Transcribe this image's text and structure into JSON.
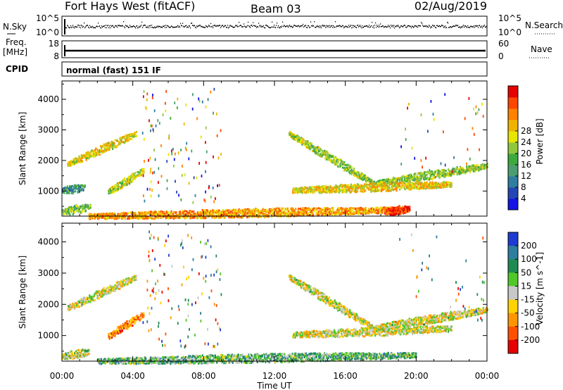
{
  "header": {
    "station": "Fort Hays West (fitACF)",
    "beam": "Beam 03",
    "date": "02/Aug/2019"
  },
  "strip": {
    "nsky_label": "N.Sky",
    "nsky_ticks": [
      "10^5",
      "10^0"
    ],
    "nsearch_label": "N.Search",
    "nsearch_ticks": [
      "10^5",
      "10^0"
    ],
    "freq_label": "Freq.",
    "freq_unit": "[MHz]",
    "freq_ticks": [
      "18",
      "8"
    ],
    "nave_label": "Nave",
    "nave_ticks": [
      "60",
      "0"
    ],
    "cpid_label": "CPID",
    "cpid_text": "normal (fast) 151 IF"
  },
  "chart_data": [
    {
      "type": "heatmap",
      "panel": "power",
      "ylabel": "Slant Range [km]",
      "yticks": [
        1000,
        2000,
        3000,
        4000
      ],
      "ylim": [
        180,
        4600
      ],
      "xlim": [
        0,
        24
      ],
      "xticks": [
        "00:00",
        "04:00",
        "08:00",
        "12:00",
        "16:00",
        "20:00",
        "00:00"
      ],
      "colorbar": {
        "label": "Power [dB]",
        "ticks": [
          "4",
          "8",
          "12",
          "16",
          "20",
          "24",
          "28"
        ],
        "colors": [
          "#1414e6",
          "#2346b4",
          "#2e7ea0",
          "#4b9e70",
          "#3caa3c",
          "#90c83c",
          "#e6e600",
          "#f0b400",
          "#ff8200",
          "#ff4600",
          "#e60000"
        ]
      },
      "echo_regions": [
        {
          "t0": 0.3,
          "t1": 4.2,
          "r0": 1900,
          "r1": 2500,
          "r2": 2900,
          "level": 0.62
        },
        {
          "t0": 2.6,
          "t1": 4.6,
          "r0": 1000,
          "r1": 1400,
          "r2": 1700,
          "level": 0.55
        },
        {
          "t0": 0.0,
          "t1": 1.3,
          "r0": 1050,
          "r1": 1150,
          "r2": 1150,
          "level": 0.3
        },
        {
          "t0": 0.0,
          "t1": 1.6,
          "r0": 350,
          "r1": 500,
          "r2": 500,
          "level": 0.45
        },
        {
          "t0": 1.5,
          "t1": 19.5,
          "r0": 200,
          "r1": 420,
          "r2": 420,
          "level": 0.75
        },
        {
          "t0": 12.8,
          "t1": 17.5,
          "r0": 2900,
          "r1": 1500,
          "r2": 1300,
          "level": 0.5
        },
        {
          "t0": 17.5,
          "t1": 24.0,
          "r0": 1250,
          "r1": 1400,
          "r2": 1850,
          "level": 0.5
        },
        {
          "t0": 13.0,
          "t1": 22.0,
          "r0": 1050,
          "r1": 1200,
          "r2": 1250,
          "level": 0.65
        },
        {
          "t0": 18.2,
          "t1": 19.6,
          "r0": 350,
          "r1": 500,
          "r2": 450,
          "level": 0.95
        }
      ]
    },
    {
      "type": "heatmap",
      "panel": "velocity",
      "ylabel": "Slant Range [km]",
      "yticks": [
        1000,
        2000,
        3000,
        4000
      ],
      "ylim": [
        180,
        4600
      ],
      "xlim": [
        0,
        24
      ],
      "xlabel": "Time UT",
      "xticks": [
        "00:00",
        "04:00",
        "08:00",
        "12:00",
        "16:00",
        "20:00",
        "00:00"
      ],
      "colorbar": {
        "label": "Velocity [m s^-1]",
        "ticks": [
          "200",
          "100",
          "50",
          "15",
          "-15",
          "-50",
          "-100",
          "-200"
        ],
        "colors": [
          "#1e3cd2",
          "#2e7ea0",
          "#1e8c50",
          "#50c828",
          "#c8c8c8",
          "#ffd200",
          "#ff9600",
          "#ff5000",
          "#e60000"
        ]
      },
      "echo_regions": [
        {
          "t0": 0.3,
          "t1": 4.2,
          "r0": 1900,
          "r1": 2500,
          "r2": 2900,
          "level": 0.55
        },
        {
          "t0": 2.6,
          "t1": 4.6,
          "r0": 1000,
          "r1": 1400,
          "r2": 1700,
          "level": 0.8
        },
        {
          "t0": 0.0,
          "t1": 1.5,
          "r0": 350,
          "r1": 500,
          "r2": 500,
          "level": 0.5
        },
        {
          "t0": 2.0,
          "t1": 20.0,
          "r0": 200,
          "r1": 400,
          "r2": 400,
          "level": 0.35
        },
        {
          "t0": 12.8,
          "t1": 17.5,
          "r0": 2900,
          "r1": 1500,
          "r2": 1300,
          "level": 0.55
        },
        {
          "t0": 17.5,
          "t1": 24.0,
          "r0": 1250,
          "r1": 1400,
          "r2": 1850,
          "level": 0.55
        },
        {
          "t0": 13.0,
          "t1": 22.0,
          "r0": 1050,
          "r1": 1200,
          "r2": 1250,
          "level": 0.55
        }
      ]
    }
  ]
}
